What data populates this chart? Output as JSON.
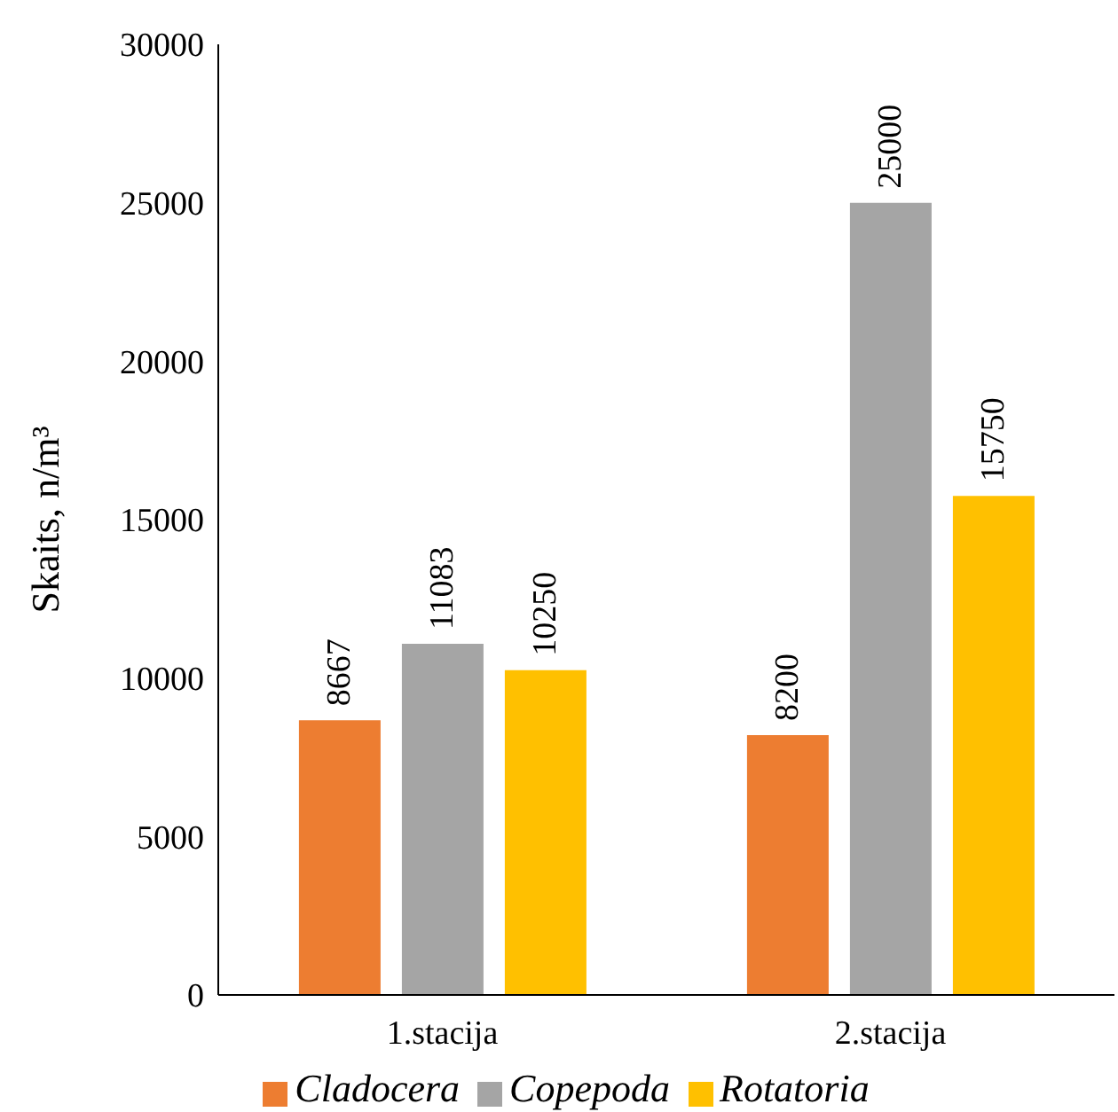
{
  "chart_data": {
    "type": "bar",
    "ylabel": "Skaits, n/m³",
    "categories": [
      "1.stacija",
      "2.stacija"
    ],
    "series": [
      {
        "name": "Cladocera",
        "color": "#ed7d31",
        "values": [
          8667,
          8200
        ]
      },
      {
        "name": "Copepoda",
        "color": "#a5a5a5",
        "values": [
          11083,
          25000
        ]
      },
      {
        "name": "Rotatoria",
        "color": "#ffc000",
        "values": [
          10250,
          15750
        ]
      }
    ],
    "ylim": [
      0,
      30000
    ],
    "yticks": [
      0,
      5000,
      10000,
      15000,
      20000,
      25000,
      30000
    ],
    "data_labels": true,
    "legend": "bottom"
  }
}
